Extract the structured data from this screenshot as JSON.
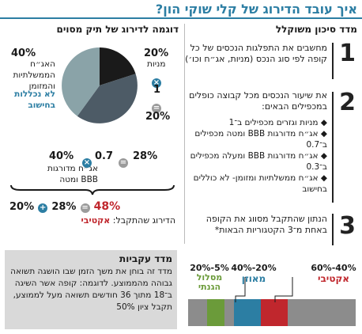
{
  "title": "איך עובד הדירוג של קלי שוקי הון?",
  "right": {
    "header": "מדד סיכון משוקלל",
    "steps": [
      {
        "num": "1",
        "text": "מחשבים את התפלגות הנכסים של כל קופה לפי סוג הנכס (מניות, אג״ח וכו׳)"
      },
      {
        "num": "2",
        "text": "את שיעור הנכסים מכל קבוצה כופלים במכפילים הבאים:"
      },
      {
        "num": "3",
        "text": "הנתון שהתקבל מסווג את הקופה באחת מ־3 הקטגוריות הבאות*"
      }
    ],
    "multipliers": [
      "מניות וגזרים מכפילים ב־1",
      "אג״ח מדורגות BBB ומטה מכפילים ב־0.7",
      "אג״ח מדורגות BBB ומעלה מכפילים ב־0.3",
      "אג״ח ממשלתיות ומזומן- לא כוללים בחישוב"
    ]
  },
  "left": {
    "header": "דוגמה לדירוג של תיק מסוים",
    "pie": {
      "stocks_pct": "20%",
      "stocks_label": "מניות",
      "gov_pct": "40%",
      "gov_label": "האג״ח הממשלתיות והמזומן",
      "gov_note": "לא נכללות בחישוב",
      "corp_pct": "40%",
      "corp_label": "אג״ח מדורגות BBB ומטה"
    },
    "calc_stocks_mult": "1",
    "calc_stocks_result": "20%",
    "calc_corp_mult": "0.7",
    "calc_corp_result": "28%",
    "sum_a": "20%",
    "sum_b": "28%",
    "sum_result": "48%",
    "rating_label": "הדירוג שהתקבל:",
    "rating_value": "אקטיבי"
  },
  "index_box": {
    "header": "מדד עקביות",
    "text": "מדד זה בוחן את משך הזמן שבו הושגה תשואה גבוהה מהממוצע. לדוגמה: קופה אשר השיגה ב־18 מתוך 36 חודשים תשואה מעל לממוצע, תקבל ציון 50%"
  },
  "categories": [
    {
      "range": "60%-40%",
      "name": "אקטיבי",
      "color": "#c0272d"
    },
    {
      "range": "40%-20%",
      "name": "מאוזן",
      "color": "#2c7ea3"
    },
    {
      "range": "20%-5%",
      "name": "מסלול הגנתי",
      "color": "#6b9b3a"
    }
  ],
  "colors": {
    "accent": "#2c7ea3",
    "red": "#c0272d",
    "green": "#6b9b3a",
    "gray": "#8c8c8c",
    "dark": "#1a1a1a"
  }
}
